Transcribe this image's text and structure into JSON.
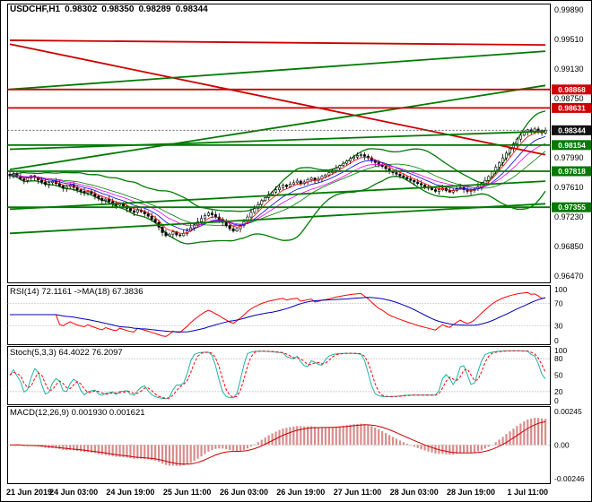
{
  "header": {
    "symbol_tf": "USDCHF,H1",
    "open": "0.98302",
    "high": "0.98350",
    "low": "0.98289",
    "close": "0.98344"
  },
  "chart_data": {
    "type": "candlestick",
    "symbol": "USDCHF",
    "timeframe": "H1",
    "title": "USDCHF,H1 0.98302 0.98350 0.98289 0.98344",
    "ohlc_current_bar": {
      "open": 0.98302,
      "high": 0.9835,
      "low": 0.98289,
      "close": 0.98344
    },
    "price_range": [
      0.9639,
      0.9996
    ],
    "y_axis": {
      "plain_labels": [
        "0.99890",
        "0.99510",
        "0.99130",
        "0.98750",
        "0.97990",
        "0.97610",
        "0.97230",
        "0.96850",
        "0.96470"
      ],
      "badges": [
        {
          "value": "0.98868",
          "type": "resistance",
          "color": "#cc0000"
        },
        {
          "value": "0.98631",
          "type": "resistance",
          "color": "#cc0000"
        },
        {
          "value": "0.98344",
          "type": "current-price",
          "color": "#111111"
        },
        {
          "value": "0.98154",
          "type": "support",
          "color": "#007a00"
        },
        {
          "value": "0.97818",
          "type": "support",
          "color": "#007a00"
        },
        {
          "value": "0.97355",
          "type": "support",
          "color": "#007a00"
        }
      ]
    },
    "x_labels": [
      "21 Jun 2019",
      "24 Jun 03:00",
      "24 Jun 19:00",
      "25 Jun 11:00",
      "26 Jun 03:00",
      "26 Jun 19:00",
      "27 Jun 11:00",
      "28 Jun 03:00",
      "28 Jun 19:00",
      "1 Jul 11:00"
    ],
    "x_label_bars": [
      2,
      18,
      34,
      50,
      66,
      82,
      98,
      114,
      130,
      146
    ],
    "closes": [
      0.9776,
      0.9778,
      0.97755,
      0.9772,
      0.977,
      0.9773,
      0.9776,
      0.9774,
      0.97705,
      0.9768,
      0.9765,
      0.97672,
      0.9769,
      0.9766,
      0.9763,
      0.976,
      0.97622,
      0.9764,
      0.9761,
      0.9758,
      0.9756,
      0.97542,
      0.9756,
      0.9753,
      0.975,
      0.9747,
      0.97442,
      0.9746,
      0.9743,
      0.974,
      0.9738,
      0.974,
      0.9737,
      0.9734,
      0.9731,
      0.9729,
      0.9732,
      0.973,
      0.9727,
      0.9724,
      0.972,
      0.9716,
      0.971,
      0.9703,
      0.9699,
      0.9701,
      0.9704,
      0.97,
      0.9699,
      0.9702,
      0.9705,
      0.97092,
      0.9713,
      0.9717,
      0.9721,
      0.9725,
      0.9728,
      0.9726,
      0.9723,
      0.972,
      0.9716,
      0.9712,
      0.9708,
      0.9705,
      0.9708,
      0.9712,
      0.9717,
      0.9723,
      0.9729,
      0.9734,
      0.9739,
      0.9744,
      0.9748,
      0.9752,
      0.9755,
      0.9758,
      0.9761,
      0.9764,
      0.9762,
      0.9765,
      0.9767,
      0.97692,
      0.9766,
      0.9768,
      0.9771,
      0.9773,
      0.977,
      0.9772,
      0.9775,
      0.9777,
      0.978,
      0.9783,
      0.9786,
      0.9789,
      0.9792,
      0.9795,
      0.9798,
      0.98,
      0.9802,
      0.9803,
      0.9801,
      0.9799,
      0.9796,
      0.9793,
      0.979,
      0.9788,
      0.9785,
      0.9782,
      0.978,
      0.9778,
      0.9776,
      0.9774,
      0.9772,
      0.977,
      0.9768,
      0.9766,
      0.9764,
      0.9762,
      0.976,
      0.9758,
      0.9756,
      0.9758,
      0.976,
      0.9757,
      0.9755,
      0.9757,
      0.9759,
      0.9761,
      0.9758,
      0.9756,
      0.9757,
      0.9759,
      0.9762,
      0.9766,
      0.977,
      0.9775,
      0.9781,
      0.9787,
      0.9793,
      0.9799,
      0.9805,
      0.9811,
      0.9817,
      0.9823,
      0.9828,
      0.9832,
      0.9835,
      0.9833,
      0.9836,
      0.9834,
      0.9831,
      0.98344
    ],
    "horizontal_levels": [
      {
        "price": 0.98868,
        "color": "#cc0000"
      },
      {
        "price": 0.98631,
        "color": "#cc0000"
      },
      {
        "price": 0.98154,
        "color": "#007a00"
      },
      {
        "price": 0.97818,
        "color": "#007a00"
      },
      {
        "price": 0.97355,
        "color": "#007a00"
      }
    ],
    "current_price": 0.98344,
    "trendlines": [
      {
        "from": [
          0,
          0.995
        ],
        "to": [
          151,
          0.9944
        ],
        "color": "#cc0000"
      },
      {
        "from": [
          0,
          0.9945
        ],
        "to": [
          151,
          0.9803
        ],
        "color": "#cc0000"
      },
      {
        "from": [
          0,
          0.9887
        ],
        "to": [
          151,
          0.9936
        ],
        "color": "#007a00"
      },
      {
        "from": [
          0,
          0.9784
        ],
        "to": [
          151,
          0.9892
        ],
        "color": "#007a00"
      },
      {
        "from": [
          0,
          0.981
        ],
        "to": [
          151,
          0.9833
        ],
        "color": "#007a00"
      },
      {
        "from": [
          0,
          0.9733
        ],
        "to": [
          151,
          0.9769
        ],
        "color": "#007a00"
      },
      {
        "from": [
          0,
          0.9702
        ],
        "to": [
          151,
          0.974
        ],
        "color": "#007a00"
      }
    ],
    "indicators": {
      "rsi": {
        "label": "RSI(14) 72.1161  ->MA(18) 67.3836",
        "period": 14,
        "ma_period": 18,
        "value": 72.1161,
        "ma_value": 67.3836,
        "axis_labels": [
          "100",
          "70",
          "30",
          "0"
        ],
        "levels": [
          70,
          30
        ],
        "range": [
          0,
          100
        ]
      },
      "stoch": {
        "label": "Stoch(5,3,3) 64.4022 76.2097",
        "value": 64.4022,
        "signal": 76.2097,
        "axis_labels": [
          "100",
          "80",
          "50",
          "20",
          "0"
        ],
        "levels": [
          80,
          20
        ],
        "range": [
          0,
          100
        ]
      },
      "macd": {
        "label": "MACD(12,26,9) 0.001930 0.001621",
        "value": 0.00193,
        "signal": 0.001621,
        "axis_labels": [
          "0.00245",
          "0.00",
          "-0.00246"
        ],
        "range": [
          -0.00246,
          0.00245
        ]
      }
    },
    "colors": {
      "background": "#ffffff",
      "frame": "#000000",
      "bull": "#ffffff",
      "bear": "#000000",
      "wick": "#000000",
      "bollinger": "#007a00",
      "ma_fast": "#ff0000",
      "ma_mid": "#0000ee",
      "ma_slow": "#ee00ee",
      "resistance": "#cc0000",
      "support": "#007a00",
      "rsi_line": "#ff0000",
      "rsi_ma": "#0000bb",
      "stoch_k": "#20b2aa",
      "stoch_d": "#ff0000",
      "macd_hist": "#d98c8c",
      "macd_signal": "#cc0000"
    }
  }
}
